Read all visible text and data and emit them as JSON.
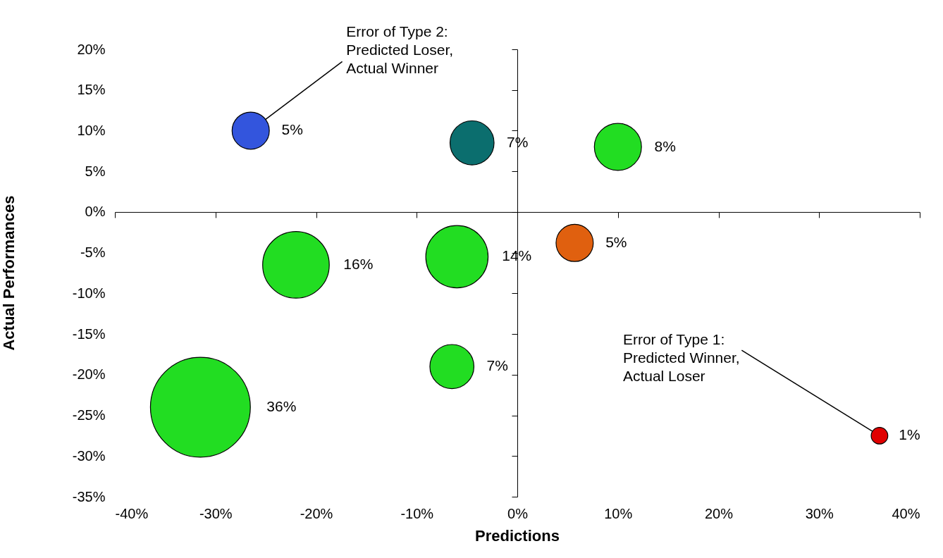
{
  "chart_data": {
    "type": "bubble",
    "xlabel": "Predictions",
    "ylabel": "Actual Performances",
    "x": [
      -26.5,
      -4.5,
      10,
      -22,
      -6,
      5.7,
      -6.5,
      -31.5,
      36
    ],
    "values": [
      10,
      8.5,
      8,
      -6.5,
      -5.5,
      -3.8,
      -19,
      -24,
      -27.5
    ],
    "sizes": [
      5,
      7,
      8,
      16,
      14,
      5,
      7,
      36,
      1
    ],
    "value_labels": [
      "5%",
      "7%",
      "8%",
      "16%",
      "14%",
      "5%",
      "7%",
      "36%",
      "1%"
    ],
    "colors": [
      "#3355dd",
      "#0b6e6e",
      "#22dd22",
      "#22dd22",
      "#22dd22",
      "#e0600f",
      "#22dd22",
      "#22dd22",
      "#e00000"
    ],
    "xlim": [
      -40,
      40
    ],
    "xticks": [
      {
        "value": -40,
        "label": "-40%"
      },
      {
        "value": -30,
        "label": "-30%"
      },
      {
        "value": -20,
        "label": "-20%"
      },
      {
        "value": -10,
        "label": "-10%"
      },
      {
        "value": 0,
        "label": "0%"
      },
      {
        "value": 10,
        "label": "10%"
      },
      {
        "value": 20,
        "label": "20%"
      },
      {
        "value": 30,
        "label": "30%"
      },
      {
        "value": 40,
        "label": "40%"
      }
    ],
    "ylim": [
      -35,
      20
    ],
    "yticks": [
      {
        "value": -35,
        "label": "-35%"
      },
      {
        "value": -30,
        "label": "-30%"
      },
      {
        "value": -25,
        "label": "-25%"
      },
      {
        "value": -20,
        "label": "-20%"
      },
      {
        "value": -15,
        "label": "-15%"
      },
      {
        "value": -10,
        "label": "-10%"
      },
      {
        "value": -5,
        "label": "-5%"
      },
      {
        "value": 0,
        "label": "0%"
      },
      {
        "value": 5,
        "label": "5%"
      },
      {
        "value": 10,
        "label": "10%"
      },
      {
        "value": 15,
        "label": "15%"
      },
      {
        "value": 20,
        "label": "20%"
      }
    ],
    "annotations": [
      {
        "text": "Error of Type 2:\nPredicted Loser,\nActual Winner",
        "x": -26.5,
        "y": 10
      },
      {
        "text": "Error of Type 1:\nPredicted Winner,\nActual Loser",
        "x": 36,
        "y": -27.5
      }
    ]
  }
}
